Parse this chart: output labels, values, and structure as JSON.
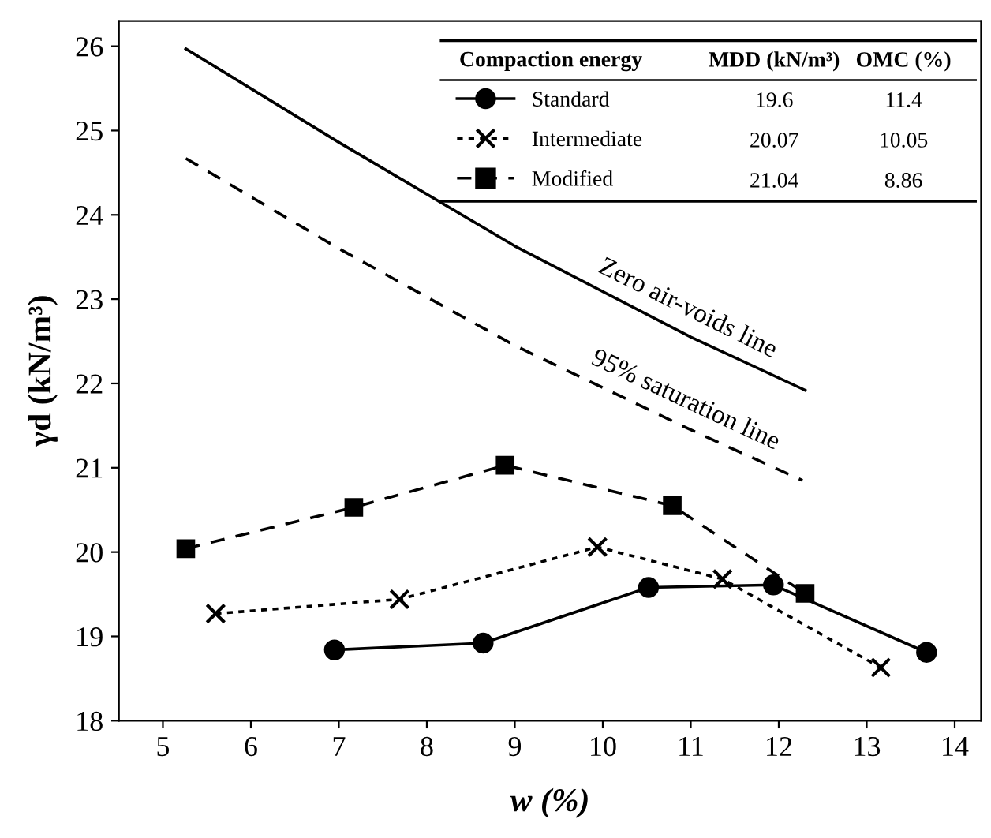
{
  "chart_data": {
    "type": "line",
    "xlabel": "w (%)",
    "ylabel": "γd (kN/m³)",
    "xlim": [
      4.5,
      14.3
    ],
    "xticks": [
      5,
      6,
      7,
      8,
      9,
      10,
      11,
      12,
      13,
      14
    ],
    "ylim": [
      18,
      26.3
    ],
    "yticks": [
      18,
      19,
      20,
      21,
      22,
      23,
      24,
      25,
      26
    ],
    "grid": false,
    "legend": "top right",
    "legend_title": "Compaction energy",
    "series": [
      {
        "name": "Standard",
        "color": "#000000",
        "marker": "circle",
        "line_style": "solid",
        "x": [
          6.95,
          8.64,
          10.52,
          11.94,
          13.68
        ],
        "values": [
          18.84,
          18.92,
          19.58,
          19.61,
          18.81
        ]
      },
      {
        "name": "Intermediate",
        "color": "#000000",
        "marker": "cross",
        "line_style": "dotted",
        "x": [
          5.6,
          7.69,
          9.94,
          11.36,
          13.16
        ],
        "values": [
          19.27,
          19.44,
          20.06,
          19.68,
          18.63
        ]
      },
      {
        "name": "Modified",
        "color": "#000000",
        "marker": "square",
        "line_style": "dashed",
        "x": [
          5.26,
          7.17,
          8.89,
          10.79,
          12.3
        ],
        "values": [
          20.04,
          20.53,
          21.03,
          20.55,
          19.51
        ]
      },
      {
        "color": "#000000",
        "marker": "none",
        "line_style": "solid",
        "x": [
          5.26,
          7,
          9,
          11,
          12.3
        ],
        "values": [
          25.97,
          24.86,
          23.63,
          22.55,
          21.92
        ]
      },
      {
        "color": "#000000",
        "marker": "none",
        "line_style": "dashed",
        "x": [
          5.26,
          7,
          9,
          11,
          12.27
        ],
        "values": [
          24.67,
          23.6,
          22.45,
          21.45,
          20.85
        ]
      }
    ],
    "annotations": [
      "MDD (kN/m³)",
      "OMC (%)",
      "19.6",
      "11.4",
      "20.07",
      "10.05",
      "21.04",
      "8.86",
      "Zero air-voids line",
      "95% saturation line"
    ]
  }
}
